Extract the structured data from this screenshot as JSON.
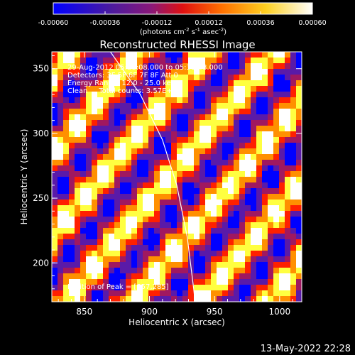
{
  "chart_data": {
    "type": "heatmap",
    "title": "Reconstructed RHESSI Image",
    "xlabel": "Heliocentric X (arcsec)",
    "ylabel": "Heliocentric Y (arcsec)",
    "xlim": [
      825,
      1017
    ],
    "ylim": [
      170,
      363
    ],
    "xticks": [
      850,
      900,
      950,
      1000
    ],
    "yticks": [
      200,
      250,
      300,
      350
    ],
    "colorbar": {
      "ticks": [
        "-0.00060",
        "-0.00036",
        "-0.00012",
        "0.00012",
        "0.00036",
        "0.00060"
      ],
      "units_main": "(photons cm",
      "units_exp1": "-2",
      "units_mid": " s",
      "units_exp2": "-1",
      "units_end": " asec",
      "units_exp3": "-2",
      "units_close": ")",
      "colors": [
        "#0000ff",
        "#5a1aa8",
        "#a01860",
        "#ff2000",
        "#ff9000",
        "#ffff40",
        "#ffffff"
      ]
    },
    "annotations": {
      "time_range": "29-Aug-2012 05:28:08.000 to 05:31:48.000",
      "detectors": "Detectors: 3F 5F 6F 7F 8F  Att 0",
      "energy_range": "Energy Range: 12.0 - 25.0 keV",
      "algorithm": "Clean     Total counts: 3.57E+03",
      "peak": "Position of Peak = [857,285]"
    },
    "limb_curve": [
      [
        870,
        363
      ],
      [
        893,
        330
      ],
      [
        910,
        295
      ],
      [
        921,
        260
      ],
      [
        929,
        220
      ],
      [
        934,
        180
      ],
      [
        935,
        170
      ]
    ],
    "stripes": {
      "direction_deg": -40,
      "period_arcsec": 40,
      "value_min": -0.0006,
      "value_max": 0.0006
    }
  },
  "footer": {
    "date": "13-May-2022 22:28"
  }
}
